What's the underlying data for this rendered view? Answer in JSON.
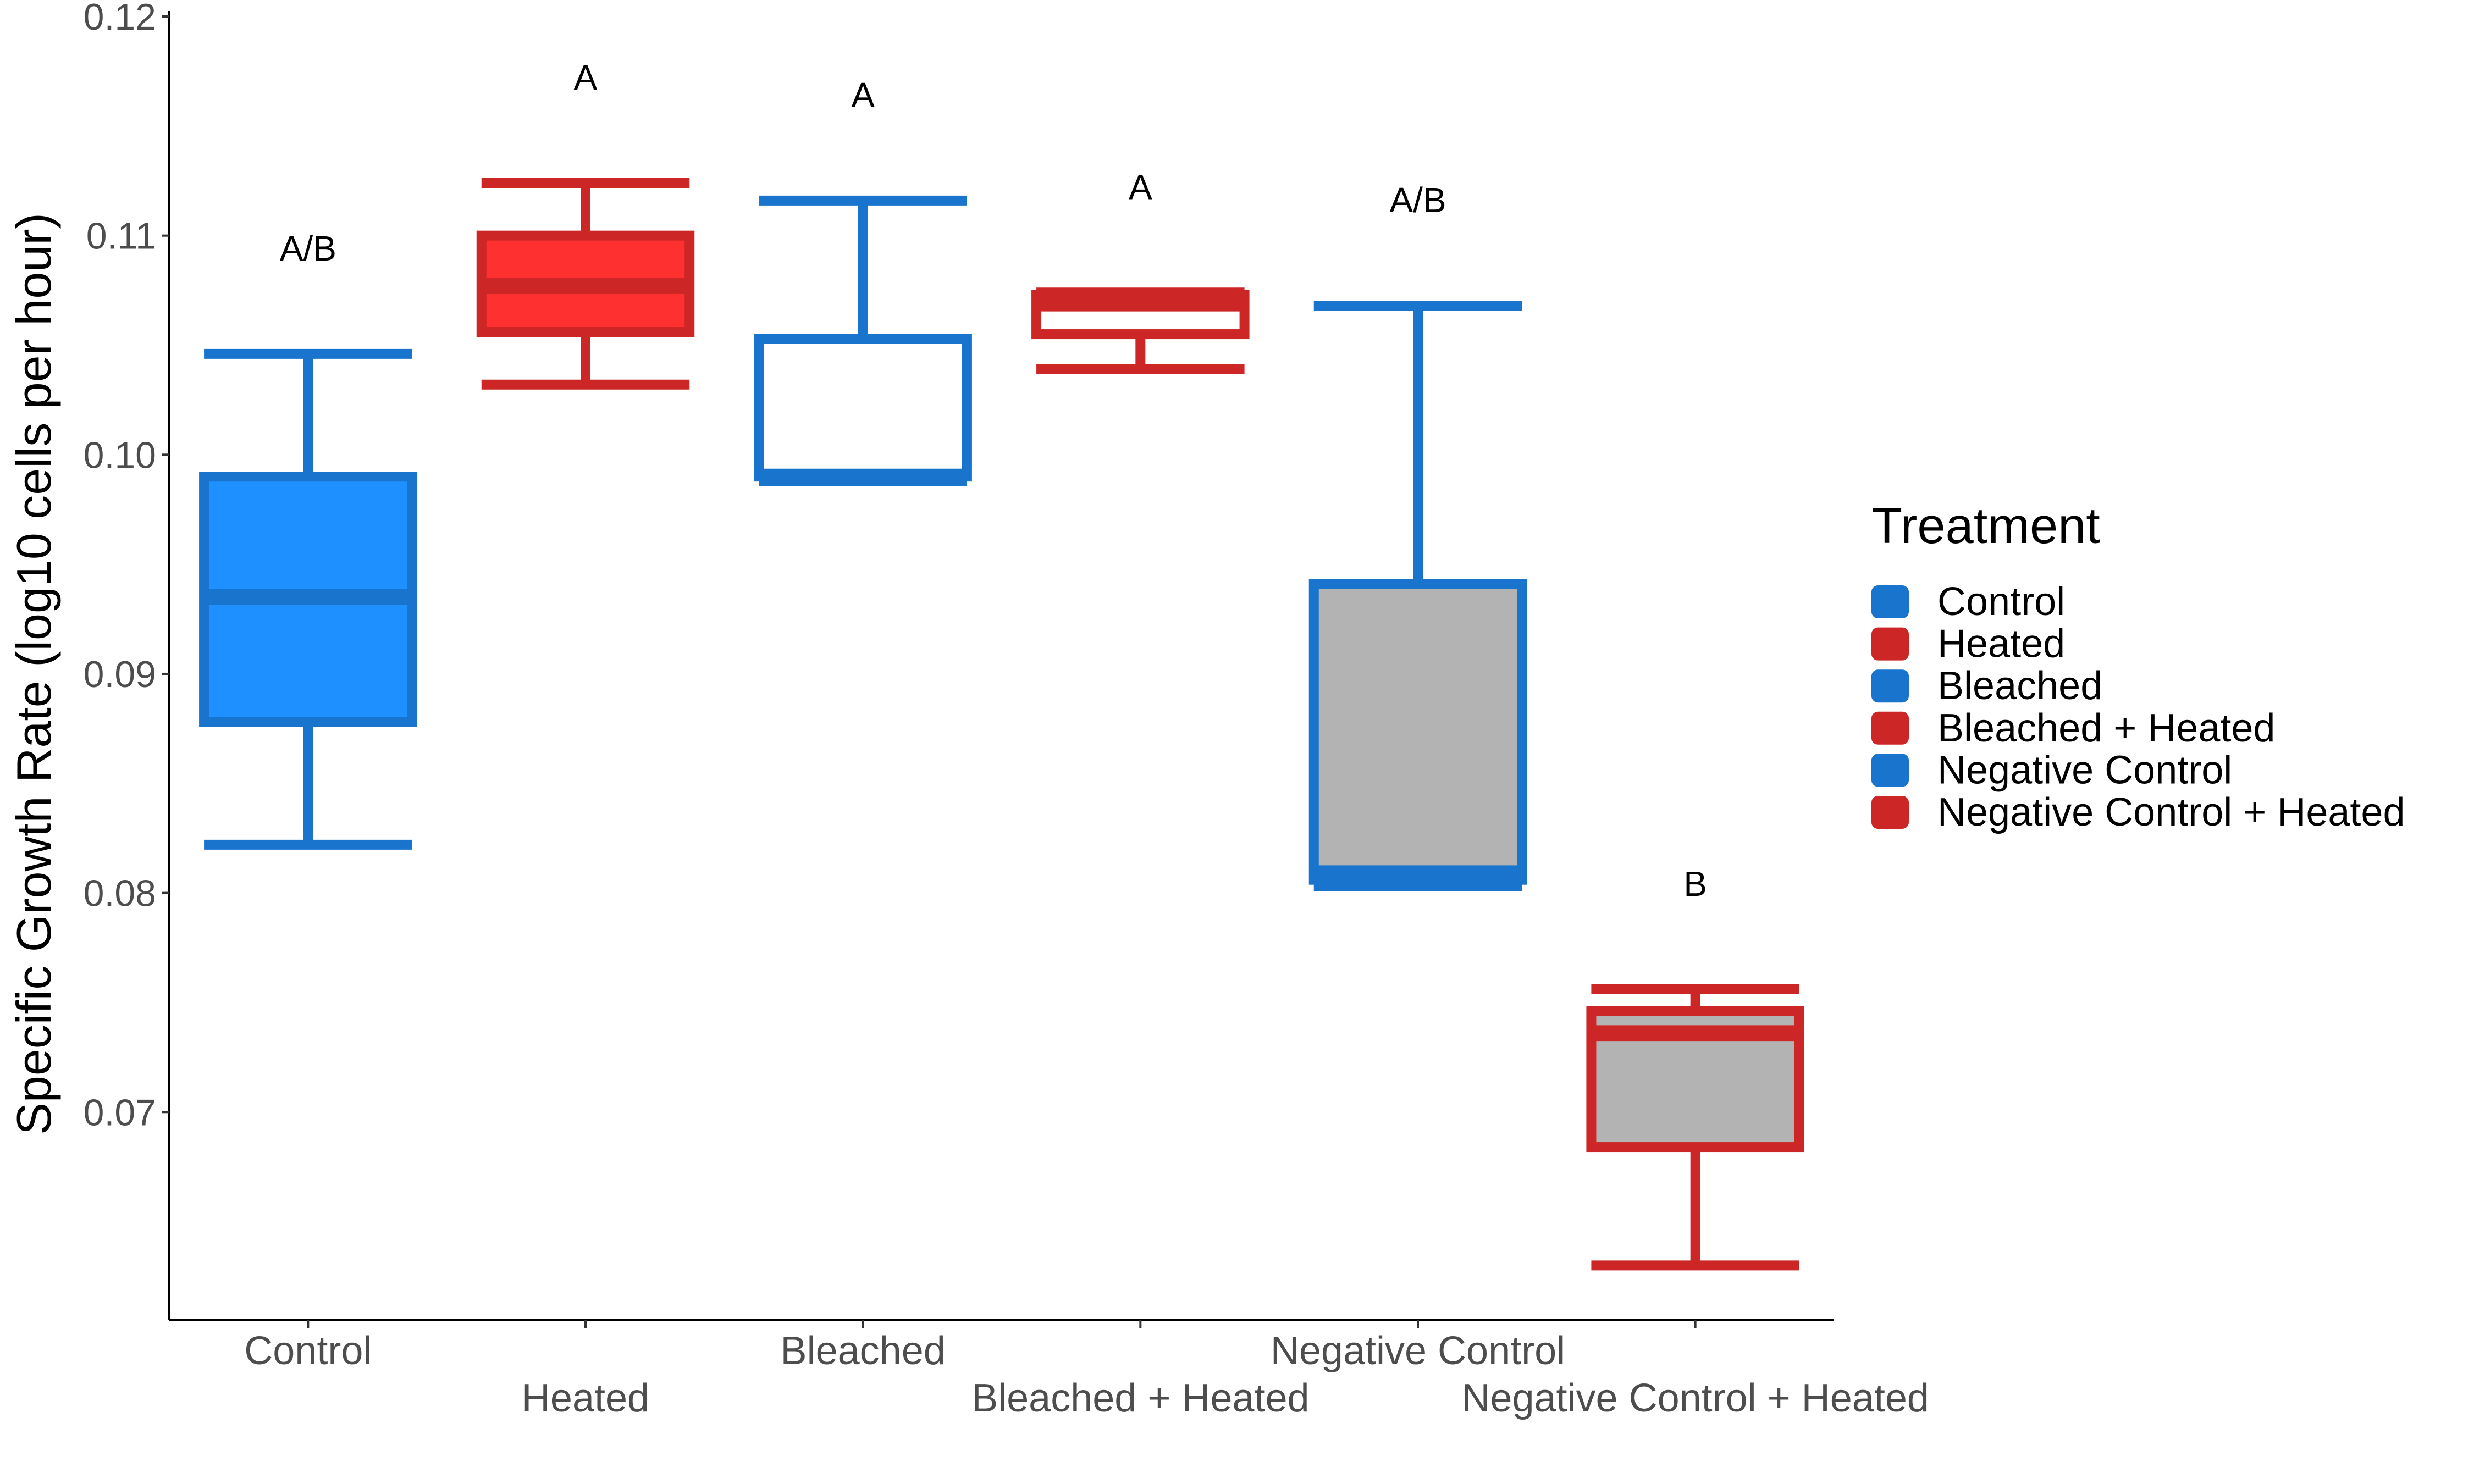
{
  "chart_data": {
    "type": "box",
    "title": "",
    "xlabel": "",
    "ylabel": "Specific Growth Rate (log10 cells per hour)",
    "ylim": [
      0.0605,
      0.12
    ],
    "yticks": [
      "0.07",
      "0.08",
      "0.09",
      "0.10",
      "0.11",
      "0.12"
    ],
    "grid": false,
    "legend": {
      "title": "Treatment",
      "placement": "right",
      "entries": [
        {
          "label": "Control",
          "color": "#1874CD"
        },
        {
          "label": "Heated",
          "color": "#CD2626"
        },
        {
          "label": "Bleached",
          "color": "#1874CD"
        },
        {
          "label": "Bleached + Heated",
          "color": "#CD2626"
        },
        {
          "label": "Negative Control",
          "color": "#1874CD"
        },
        {
          "label": "Negative Control + Heated",
          "color": "#CD2626"
        }
      ]
    },
    "categories": [
      "Control",
      "Heated",
      "Bleached",
      "Bleached + Heated",
      "Negative Control",
      "Negative Control + Heated"
    ],
    "boxes": [
      {
        "category": "Control",
        "min": 0.0822,
        "q1": 0.0878,
        "median": 0.0935,
        "q3": 0.099,
        "max": 0.1046,
        "letter": "A/B",
        "outline": "#1874CD",
        "fill": "#1E90FF"
      },
      {
        "category": "Heated",
        "min": 0.1032,
        "q1": 0.1056,
        "median": 0.1077,
        "q3": 0.11,
        "max": 0.1124,
        "letter": "A",
        "outline": "#CD2626",
        "fill": "#FF3030"
      },
      {
        "category": "Bleached",
        "min": 0.0988,
        "q1": 0.099,
        "median": 0.099,
        "q3": 0.1053,
        "max": 0.1116,
        "letter": "A",
        "outline": "#1874CD",
        "fill": "#FFFFFF"
      },
      {
        "category": "Bleached + Heated",
        "min": 0.1039,
        "q1": 0.1055,
        "median": 0.1069,
        "q3": 0.1073,
        "max": 0.1074,
        "letter": "A",
        "outline": "#CD2626",
        "fill": "#FFFFFF"
      },
      {
        "category": "Negative Control",
        "min": 0.0803,
        "q1": 0.0806,
        "median": 0.0809,
        "q3": 0.0941,
        "max": 0.1068,
        "letter": "A/B",
        "outline": "#1874CD",
        "fill": "#B3B3B3"
      },
      {
        "category": "Negative Control + Heated",
        "min": 0.063,
        "q1": 0.0684,
        "median": 0.0736,
        "q3": 0.0746,
        "max": 0.0756,
        "letter": "B",
        "outline": "#CD2626",
        "fill": "#B3B3B3"
      }
    ]
  }
}
